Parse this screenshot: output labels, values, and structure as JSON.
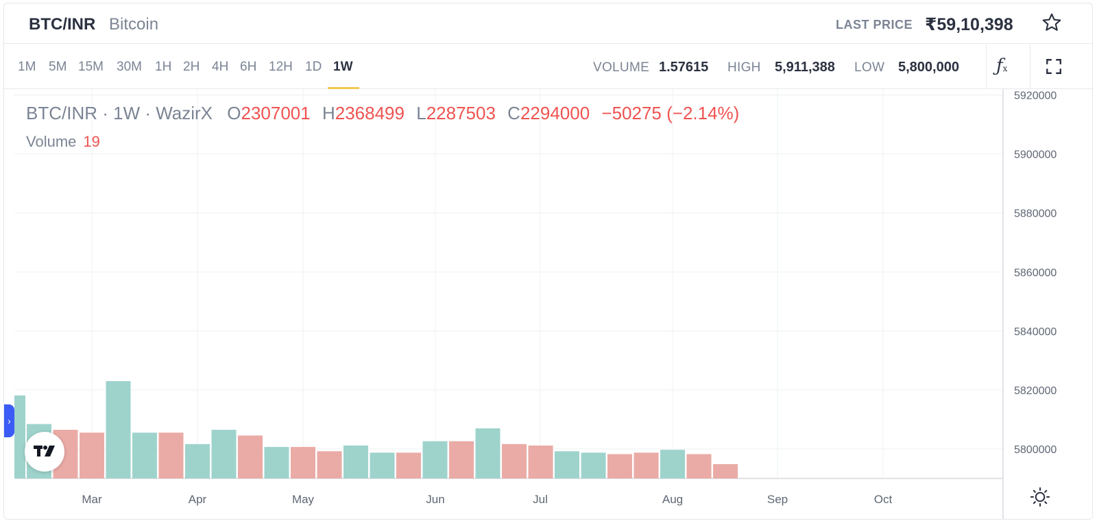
{
  "header": {
    "symbol": "BTC/INR",
    "name": "Bitcoin",
    "last_price_label": "LAST PRICE",
    "last_price": "₹59,10,398",
    "favorite_icon": "star-icon"
  },
  "toolbar": {
    "intervals": [
      "1M",
      "5M",
      "15M",
      "30M",
      "1H",
      "2H",
      "4H",
      "6H",
      "12H",
      "1D",
      "1W"
    ],
    "active_interval": "1W",
    "volume_label": "VOLUME",
    "volume": "1.57615",
    "high_label": "HIGH",
    "high": "5,911,388",
    "low_label": "LOW",
    "low": "5,800,000",
    "indicators_icon": "function-icon",
    "fullscreen_icon": "fullscreen-icon"
  },
  "legend": {
    "title": "BTC/INR · 1W · WazirX",
    "o_label": "O",
    "o": "2307001",
    "h_label": "H",
    "h": "2368499",
    "l_label": "L",
    "l": "2287503",
    "c_label": "C",
    "c": "2294000",
    "change": "−50275 (−2.14%)",
    "volume_label": "Volume",
    "volume": "19"
  },
  "chart_data": {
    "type": "bar",
    "title": "",
    "y_axis": {
      "ticks": [
        5800000,
        5820000,
        5840000,
        5860000,
        5880000,
        5900000,
        5920000
      ],
      "range": [
        5790000,
        5922000
      ],
      "position": "right"
    },
    "x_axis": {
      "ticks": [
        "Mar",
        "Apr",
        "May",
        "Jun",
        "Jul",
        "Aug",
        "Sep",
        "Oct"
      ]
    },
    "grid": true,
    "volume_bars": [
      {
        "value": 29,
        "dir": "up"
      },
      {
        "value": 19,
        "dir": "up"
      },
      {
        "value": 17,
        "dir": "down"
      },
      {
        "value": 16,
        "dir": "down"
      },
      {
        "value": 34,
        "dir": "up"
      },
      {
        "value": 16,
        "dir": "up"
      },
      {
        "value": 16,
        "dir": "down"
      },
      {
        "value": 12,
        "dir": "up"
      },
      {
        "value": 17,
        "dir": "up"
      },
      {
        "value": 15,
        "dir": "down"
      },
      {
        "value": 11,
        "dir": "up"
      },
      {
        "value": 11,
        "dir": "down"
      },
      {
        "value": 9.5,
        "dir": "down"
      },
      {
        "value": 11.5,
        "dir": "up"
      },
      {
        "value": 9,
        "dir": "up"
      },
      {
        "value": 9,
        "dir": "down"
      },
      {
        "value": 13,
        "dir": "up"
      },
      {
        "value": 13,
        "dir": "down"
      },
      {
        "value": 17.5,
        "dir": "up"
      },
      {
        "value": 12,
        "dir": "down"
      },
      {
        "value": 11.5,
        "dir": "down"
      },
      {
        "value": 9.5,
        "dir": "up"
      },
      {
        "value": 9,
        "dir": "up"
      },
      {
        "value": 8.5,
        "dir": "down"
      },
      {
        "value": 9,
        "dir": "down"
      },
      {
        "value": 10,
        "dir": "up"
      },
      {
        "value": 8.5,
        "dir": "down"
      },
      {
        "value": 5,
        "dir": "down"
      }
    ],
    "colors": {
      "up": "#9ed3cc",
      "down": "#eaaba6",
      "grid": "#eef0f3",
      "axis_text": "#5e6673"
    }
  },
  "overlay": {
    "tradingview_logo": "tradingview-logo-icon",
    "side_tab_icon": "chevron-right-icon",
    "settings_icon": "sun-gear-icon"
  }
}
